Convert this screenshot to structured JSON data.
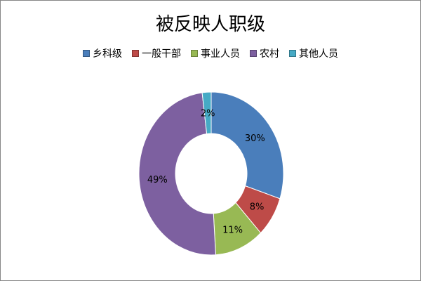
{
  "chart_data": {
    "type": "pie",
    "variant": "doughnut",
    "title": "被反映人职级",
    "categories": [
      "乡科级",
      "一般干部",
      "事业人员",
      "农村",
      "其他人员"
    ],
    "values": [
      30,
      8,
      11,
      49,
      2
    ],
    "labels": [
      "30%",
      "8%",
      "11%",
      "49%",
      "2%"
    ],
    "colors": [
      "#4a7ebb",
      "#be4b48",
      "#98b954",
      "#7d60a0",
      "#46aac5"
    ],
    "legend_position": "top",
    "start_angle": "12 o'clock",
    "direction": "clockwise"
  }
}
